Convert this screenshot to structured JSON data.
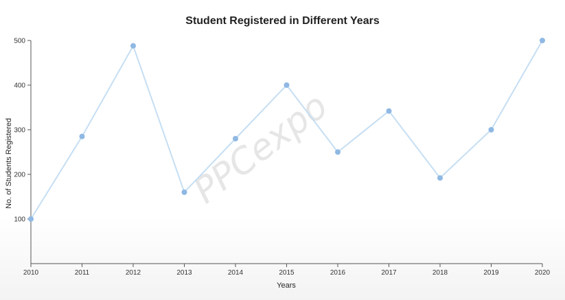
{
  "chart_data": {
    "type": "line",
    "title": "Student Registered in Different Years",
    "xlabel": "Years",
    "ylabel": "No. of Students Registered",
    "x": [
      "2010",
      "2011",
      "2012",
      "2013",
      "2014",
      "2015",
      "2016",
      "2017",
      "2018",
      "2019",
      "2020"
    ],
    "series": [
      {
        "values": [
          100,
          285,
          488,
          160,
          280,
          400,
          250,
          342,
          192,
          300,
          500
        ]
      }
    ],
    "ylim": [
      0,
      500
    ],
    "yticks": [
      100,
      200,
      300,
      400,
      500
    ],
    "grid": false,
    "line_color": "#c5def3",
    "marker_color": "#8fb8e3"
  },
  "watermark": "PPCexpo"
}
